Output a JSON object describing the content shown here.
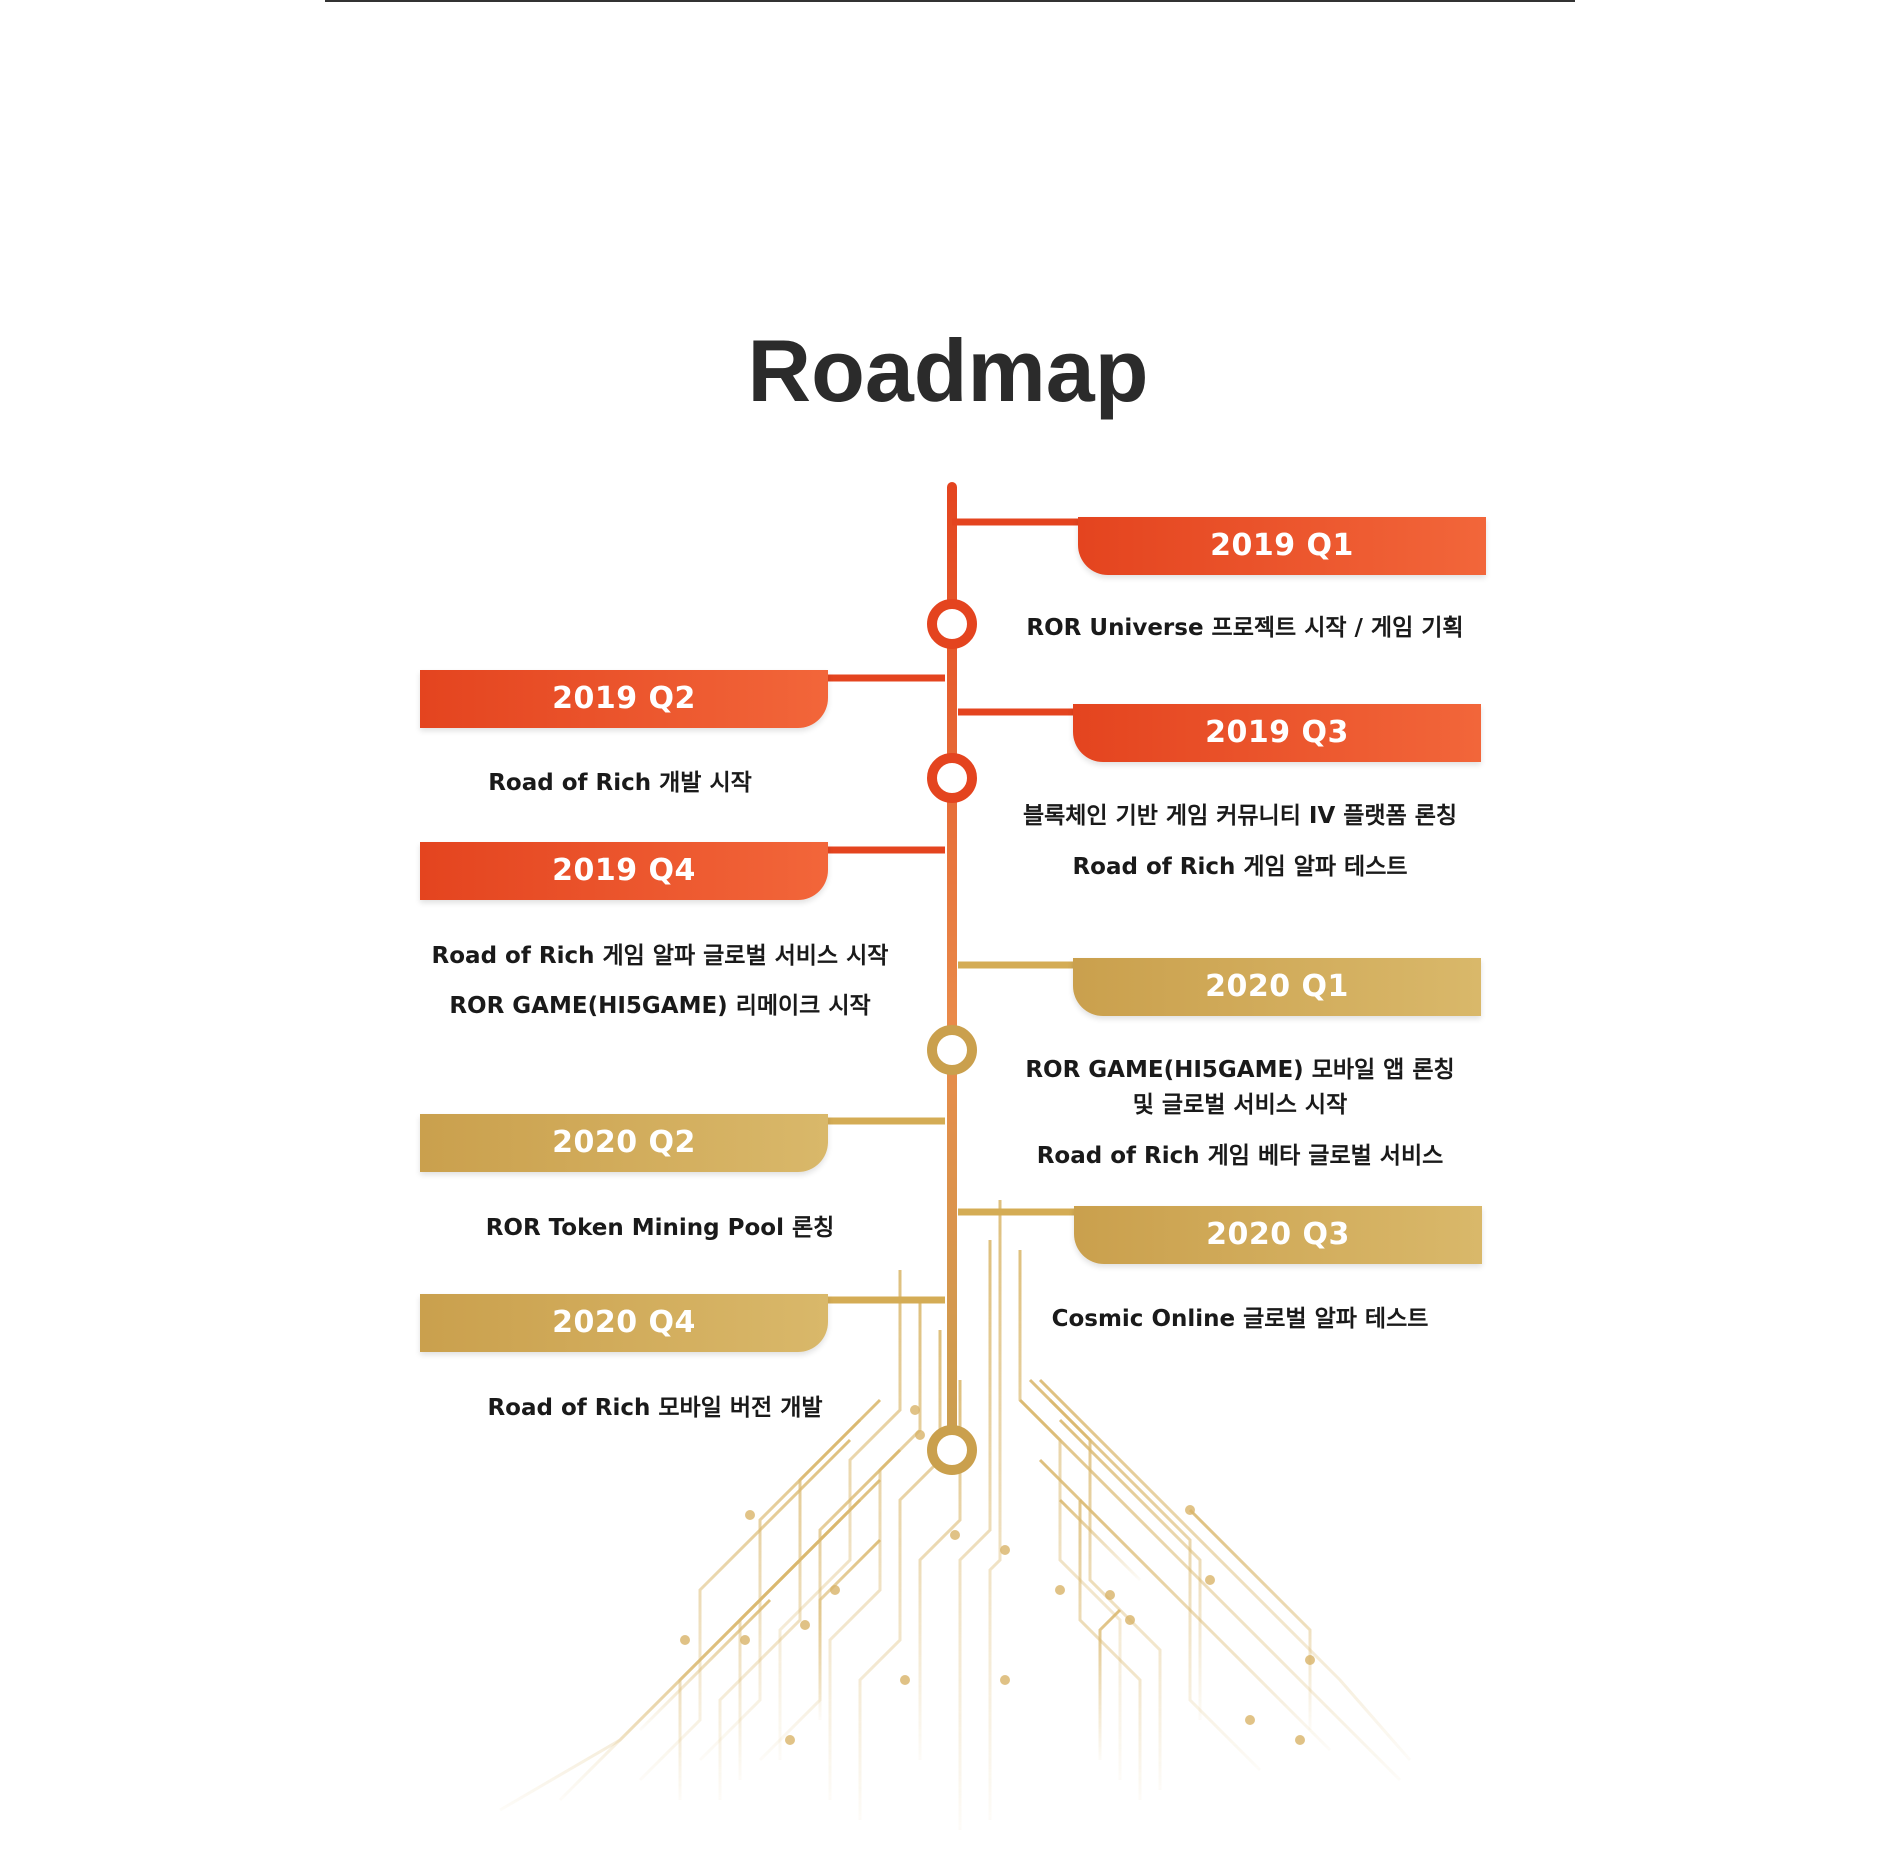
{
  "page_title": "Roadmap",
  "colors": {
    "orange": "#e4441f",
    "gold": "#caa04d",
    "title": "#2b2b2b"
  },
  "milestones": [
    {
      "quarter": "2019 Q1",
      "items": [
        "ROR Universe 프로젝트 시작 / 게임 기획"
      ]
    },
    {
      "quarter": "2019 Q2",
      "items": [
        "Road of Rich 개발 시작"
      ]
    },
    {
      "quarter": "2019 Q3",
      "items": [
        "블록체인 기반 게임 커뮤니티 IV 플랫폼 론칭",
        "Road of Rich 게임 알파 테스트"
      ]
    },
    {
      "quarter": "2019 Q4",
      "items": [
        "Road of Rich 게임 알파 글로벌 서비스 시작",
        "ROR GAME(HI5GAME) 리메이크 시작"
      ]
    },
    {
      "quarter": "2020 Q1",
      "items": [
        "ROR GAME(HI5GAME) 모바일 앱 론칭",
        "및 글로벌 서비스 시작",
        "Road of Rich 게임 베타 글로벌 서비스"
      ]
    },
    {
      "quarter": "2020 Q2",
      "items": [
        "ROR Token Mining Pool 론칭"
      ]
    },
    {
      "quarter": "2020 Q3",
      "items": [
        "Cosmic Online 글로벌 알파 테스트"
      ]
    },
    {
      "quarter": "2020 Q4",
      "items": [
        "Road of Rich 모바일 버전 개발"
      ]
    }
  ]
}
